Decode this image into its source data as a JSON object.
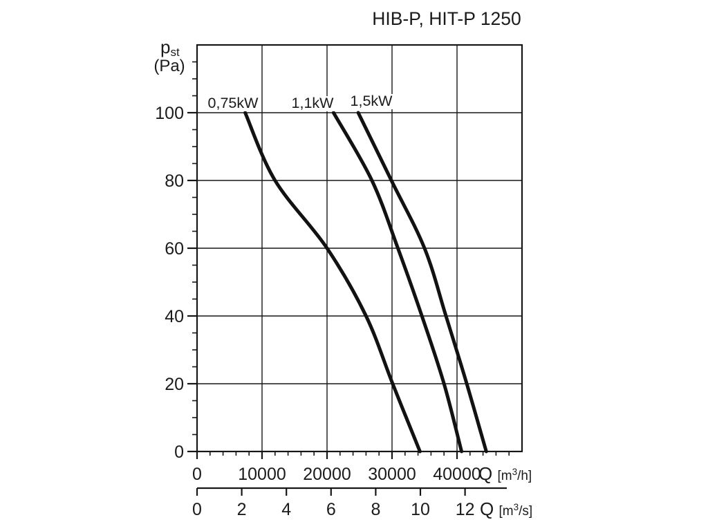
{
  "title": "HIB-P, HIT-P 1250",
  "chart_data": {
    "type": "line",
    "title": "HIB-P, HIT-P 1250",
    "grid": true,
    "line_color": "#161616",
    "y_axis": {
      "label_main": "p",
      "label_sub": "st",
      "label_unit": "(Pa)",
      "ticks": [
        0,
        20,
        40,
        60,
        80,
        100
      ],
      "range": [
        0,
        120
      ],
      "minor_step": 5
    },
    "x_axis_m3h": {
      "unit_q": "Q",
      "unit_pre": "[m",
      "unit_sup": "3",
      "unit_post": "/h]",
      "ticks": [
        0,
        10000,
        20000,
        30000,
        40000
      ],
      "range": [
        0,
        50000
      ],
      "minor_step": 2000
    },
    "x_axis_m3s": {
      "unit_q": "Q",
      "unit_pre": "[m",
      "unit_sup": "3",
      "unit_post": "/s]",
      "ticks": [
        0,
        2,
        4,
        6,
        8,
        10,
        12
      ],
      "range": [
        0,
        13.9
      ]
    },
    "series": [
      {
        "name": "0,75kW",
        "points_q_pa": [
          [
            7400,
            100
          ],
          [
            12000,
            80
          ],
          [
            20000,
            60
          ],
          [
            26000,
            40
          ],
          [
            30100,
            20
          ],
          [
            34300,
            0
          ]
        ]
      },
      {
        "name": "1,1kW",
        "points_q_pa": [
          [
            21000,
            100
          ],
          [
            26900,
            80
          ],
          [
            30900,
            60
          ],
          [
            34600,
            40
          ],
          [
            38000,
            20
          ],
          [
            40700,
            0
          ]
        ]
      },
      {
        "name": "1,5kW",
        "points_q_pa": [
          [
            24800,
            100
          ],
          [
            29900,
            80
          ],
          [
            35000,
            60
          ],
          [
            38300,
            40
          ],
          [
            41500,
            20
          ],
          [
            44500,
            0
          ]
        ]
      }
    ]
  }
}
